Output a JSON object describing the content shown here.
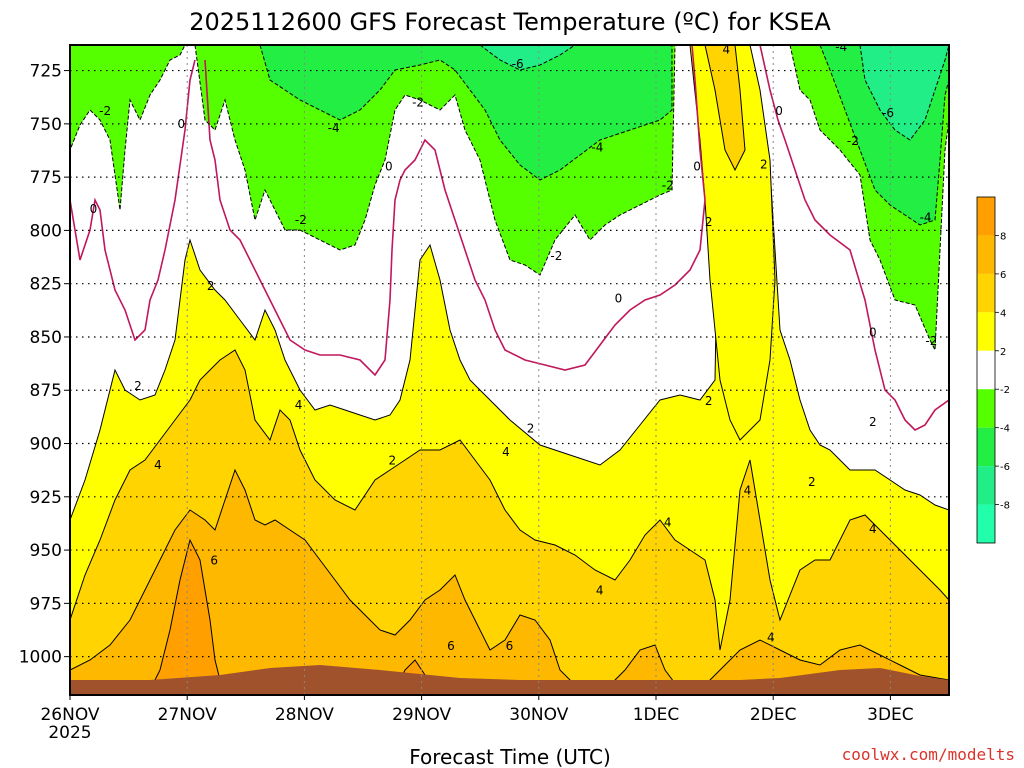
{
  "chart_data": {
    "type": "heatmap",
    "title": "2025112600 GFS Forecast Temperature (ºC) for KSEA",
    "xlabel": "Forecast Time (UTC)",
    "ylabel": "",
    "credit": "coolwx.com/modelts",
    "x_ticks": [
      {
        "label": "26NOV",
        "sub": "2025",
        "day": 0
      },
      {
        "label": "27NOV",
        "sub": "",
        "day": 1
      },
      {
        "label": "28NOV",
        "sub": "",
        "day": 2
      },
      {
        "label": "29NOV",
        "sub": "",
        "day": 3
      },
      {
        "label": "30NOV",
        "sub": "",
        "day": 4
      },
      {
        "label": "1DEC",
        "sub": "",
        "day": 5
      },
      {
        "label": "2DEC",
        "sub": "",
        "day": 6
      },
      {
        "label": "3DEC",
        "sub": "",
        "day": 7
      }
    ],
    "xlim": [
      0,
      7.5
    ],
    "y_ticks": [
      725,
      750,
      775,
      800,
      825,
      850,
      875,
      900,
      925,
      950,
      975,
      1000
    ],
    "ylim": [
      1018,
      713
    ],
    "ground_pressure_hPa": 1013,
    "colorbar": {
      "ticks": [
        8,
        6,
        4,
        2,
        -2,
        -4,
        -6,
        -8
      ],
      "bands": [
        {
          "from": 8,
          "to": 10,
          "color": "#ffa000"
        },
        {
          "from": 6,
          "to": 8,
          "color": "#ffb800"
        },
        {
          "from": 4,
          "to": 6,
          "color": "#ffd400"
        },
        {
          "from": 2,
          "to": 4,
          "color": "#ffff00"
        },
        {
          "from": -2,
          "to": 2,
          "color": "#ffffff"
        },
        {
          "from": -4,
          "to": -2,
          "color": "#55ff00"
        },
        {
          "from": -6,
          "to": -4,
          "color": "#22ee44"
        },
        {
          "from": -8,
          "to": -6,
          "color": "#22ee88"
        },
        {
          "from": -10,
          "to": -8,
          "color": "#22ffaa"
        }
      ]
    },
    "contour_labels": [
      {
        "text": "-2",
        "day": 0.3,
        "p": 744
      },
      {
        "text": "0",
        "day": 0.2,
        "p": 790
      },
      {
        "text": "0",
        "day": 0.95,
        "p": 750
      },
      {
        "text": "2",
        "day": 1.2,
        "p": 826
      },
      {
        "text": "2",
        "day": 0.58,
        "p": 873
      },
      {
        "text": "4",
        "day": 0.75,
        "p": 910
      },
      {
        "text": "6",
        "day": 1.23,
        "p": 955
      },
      {
        "text": "4",
        "day": 1.95,
        "p": 882
      },
      {
        "text": "-2",
        "day": 1.97,
        "p": 795
      },
      {
        "text": "-4",
        "day": 2.25,
        "p": 752
      },
      {
        "text": "0",
        "day": 2.72,
        "p": 770
      },
      {
        "text": "-2",
        "day": 2.97,
        "p": 740
      },
      {
        "text": "2",
        "day": 2.75,
        "p": 908
      },
      {
        "text": "6",
        "day": 3.25,
        "p": 995
      },
      {
        "text": "6",
        "day": 3.75,
        "p": 995
      },
      {
        "text": "4",
        "day": 3.72,
        "p": 904
      },
      {
        "text": "-6",
        "day": 3.82,
        "p": 722
      },
      {
        "text": "-2",
        "day": 4.15,
        "p": 812
      },
      {
        "text": "2",
        "day": 3.93,
        "p": 893
      },
      {
        "text": "-4",
        "day": 4.5,
        "p": 761
      },
      {
        "text": "4",
        "day": 4.52,
        "p": 969
      },
      {
        "text": "0",
        "day": 4.68,
        "p": 832
      },
      {
        "text": "-2",
        "day": 5.1,
        "p": 779
      },
      {
        "text": "4",
        "day": 5.1,
        "p": 937
      },
      {
        "text": "0",
        "day": 5.35,
        "p": 770
      },
      {
        "text": "2",
        "day": 5.45,
        "p": 796
      },
      {
        "text": "2",
        "day": 5.45,
        "p": 880
      },
      {
        "text": "4",
        "day": 5.6,
        "p": 715
      },
      {
        "text": "2",
        "day": 5.92,
        "p": 769
      },
      {
        "text": "0",
        "day": 6.05,
        "p": 744
      },
      {
        "text": "4",
        "day": 5.78,
        "p": 922
      },
      {
        "text": "4",
        "day": 5.98,
        "p": 991
      },
      {
        "text": "2",
        "day": 6.33,
        "p": 918
      },
      {
        "text": "-4",
        "day": 6.58,
        "p": 714
      },
      {
        "text": "-2",
        "day": 6.68,
        "p": 758
      },
      {
        "text": "-6",
        "day": 6.98,
        "p": 745
      },
      {
        "text": "0",
        "day": 6.85,
        "p": 848
      },
      {
        "text": "2",
        "day": 6.85,
        "p": 890
      },
      {
        "text": "4",
        "day": 6.85,
        "p": 940
      },
      {
        "text": "-4",
        "day": 7.3,
        "p": 794
      },
      {
        "text": "-2",
        "day": 7.35,
        "p": 852
      }
    ]
  }
}
